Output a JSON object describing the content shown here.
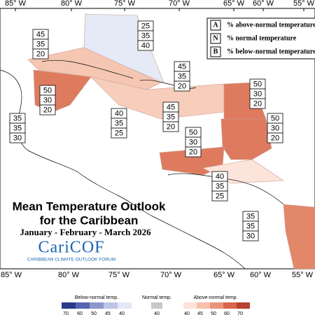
{
  "longitudes_top": [
    "85° W",
    "80° W",
    "75° W",
    "70° W",
    "65° W",
    "60° W",
    "55° W"
  ],
  "longitudes_bottom": [
    "85° W",
    "80° W",
    "75° W",
    "70° W",
    "65° W",
    "60° W",
    "55° W"
  ],
  "key": [
    {
      "letter": "A",
      "text": "% above-normal temperature"
    },
    {
      "letter": "N",
      "text": "% normal temperature"
    },
    {
      "letter": "B",
      "text": "% below-normal temperature"
    }
  ],
  "regions": [
    [
      25,
      35,
      40
    ],
    [
      45,
      35,
      20
    ],
    [
      45,
      35,
      20
    ],
    [
      50,
      30,
      20
    ],
    [
      50,
      30,
      20
    ],
    [
      40,
      35,
      25
    ],
    [
      45,
      35,
      20
    ],
    [
      35,
      35,
      30
    ],
    [
      50,
      30,
      20
    ],
    [
      50,
      30,
      20
    ],
    [
      40,
      35,
      25
    ],
    [
      35,
      35,
      30
    ]
  ],
  "title": {
    "line1": "Mean Temperature Outlook",
    "line2": "for the Caribbean",
    "period": "January - February - March 2026"
  },
  "logo": {
    "name": "CariCOF",
    "tagline": "CARIBBEAN CLIMATE OUTLOOK FORUM"
  },
  "scale": {
    "below_label": "Below-normal temp.",
    "below_ticks": [
      70,
      60,
      50,
      45,
      40
    ],
    "normal_label": "Normal temp.",
    "normal_ticks": [
      40
    ],
    "above_label": "Above-normal temp.",
    "above_ticks": [
      40,
      45,
      50,
      60,
      70
    ]
  }
}
